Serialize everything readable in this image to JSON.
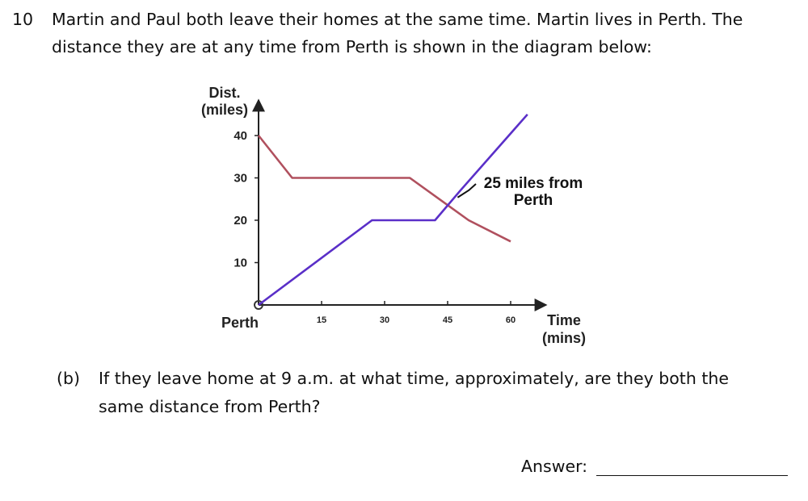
{
  "question": {
    "number": "10",
    "line1": "Martin and Paul both leave their homes at the same time. Martin lives in Perth. The",
    "line2": "distance they are at any time from Perth is shown in the diagram below:",
    "part_label": "(b)",
    "part_line1": "If they leave home at 9 a.m. at what time, approximately, are they both the",
    "part_line2": "same distance from Perth?",
    "answer_label": "Answer:"
  },
  "chart_data": {
    "type": "line",
    "ylabel_line1": "Dist.",
    "ylabel_line2": "(miles)",
    "xlabel_line1": "Time",
    "xlabel_line2": "(mins)",
    "origin_label": "Perth",
    "xlim": [
      0,
      60
    ],
    "ylim": [
      0,
      40
    ],
    "x_ticks": [
      15,
      30,
      45,
      60
    ],
    "x_tick_labels": [
      "15",
      "30",
      "45",
      "60"
    ],
    "y_ticks": [
      10,
      20,
      30,
      40
    ],
    "y_tick_labels": [
      "10",
      "20",
      "30",
      "40"
    ],
    "series": [
      {
        "color": "#b0505e",
        "points": [
          [
            0,
            40
          ],
          [
            8,
            30
          ],
          [
            36,
            30
          ],
          [
            50,
            20
          ],
          [
            60,
            15
          ]
        ]
      },
      {
        "color": "#5a2fc8",
        "points": [
          [
            0,
            0
          ],
          [
            27,
            20
          ],
          [
            42,
            20
          ],
          [
            48,
            27
          ],
          [
            64,
            45
          ]
        ]
      }
    ],
    "annotation": {
      "line1": "25 miles from",
      "line2": "Perth",
      "x": 47,
      "y": 25
    }
  }
}
